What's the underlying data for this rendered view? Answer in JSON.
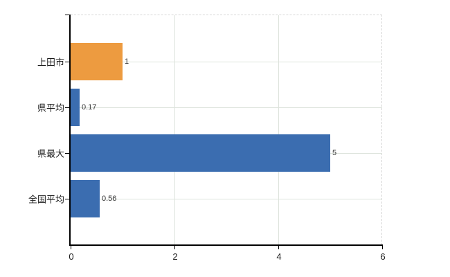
{
  "chart_data": {
    "type": "bar",
    "orientation": "horizontal",
    "title": "",
    "xlabel": "",
    "ylabel": "",
    "categories": [
      "上田市",
      "県平均",
      "県最大",
      "全国平均"
    ],
    "values": [
      1,
      0.17,
      5,
      0.56
    ],
    "value_labels": [
      "1",
      "0.17",
      "5",
      "0.56"
    ],
    "bar_colors": [
      "#ED9B40",
      "#3B6DB0",
      "#3B6DB0",
      "#3B6DB0"
    ],
    "xlim": [
      0,
      6
    ],
    "x_tick_values": [
      0,
      2,
      4,
      6
    ],
    "x_tick_labels": [
      "0",
      "2",
      "4",
      "6"
    ],
    "grid": true,
    "legend": false
  },
  "colors": {
    "bar_orange": "#ED9B40",
    "bar_blue": "#3B6DB0",
    "gridline": "#DDE3DC",
    "dashed_border": "#D6D6D6",
    "axis": "#000000",
    "label_text": "#1A1A1A",
    "value_text": "#333333",
    "background": "#FFFFFF"
  }
}
